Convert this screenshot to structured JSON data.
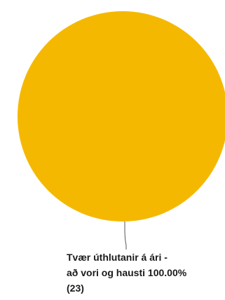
{
  "chart_data": {
    "type": "pie",
    "slices": [
      {
        "label_lines": [
          "Tvær úthlutanir á ári -",
          "að vori og hausti 100.00%",
          "(23)"
        ],
        "value": 23,
        "percent": 100.0,
        "color": "#F5B800"
      }
    ],
    "leader_line_color": "#555555"
  }
}
